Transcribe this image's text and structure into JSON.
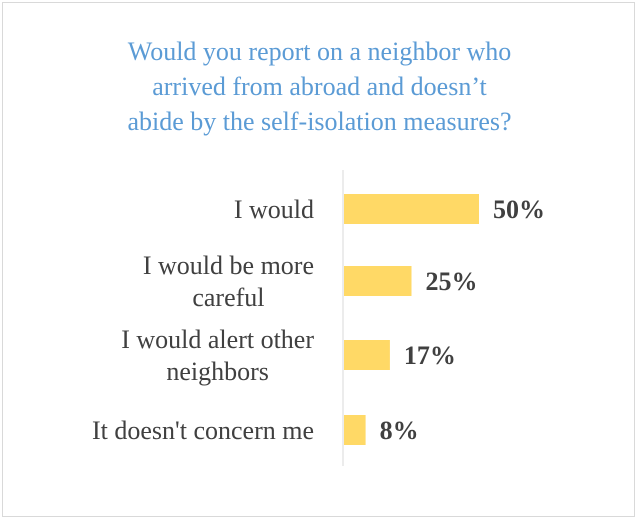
{
  "chart_data": {
    "type": "bar",
    "orientation": "horizontal",
    "title": "Would you report on a neighbor who\narrived from abroad and doesn’t\nabide by the self-isolation measures?",
    "categories": [
      "I would",
      "I would be more careful",
      "I would alert other neighbors",
      "It doesn't concern me"
    ],
    "values": [
      50,
      25,
      17,
      8
    ],
    "value_labels": [
      "50%",
      "25%",
      "17%",
      "8%"
    ],
    "unit": "%",
    "xlim": [
      0,
      50
    ],
    "grid": false,
    "legend": "none",
    "colors": {
      "bar": "#ffd966",
      "title": "#5b9bd5",
      "text": "#404040",
      "axis": "#d9d9d9"
    }
  }
}
